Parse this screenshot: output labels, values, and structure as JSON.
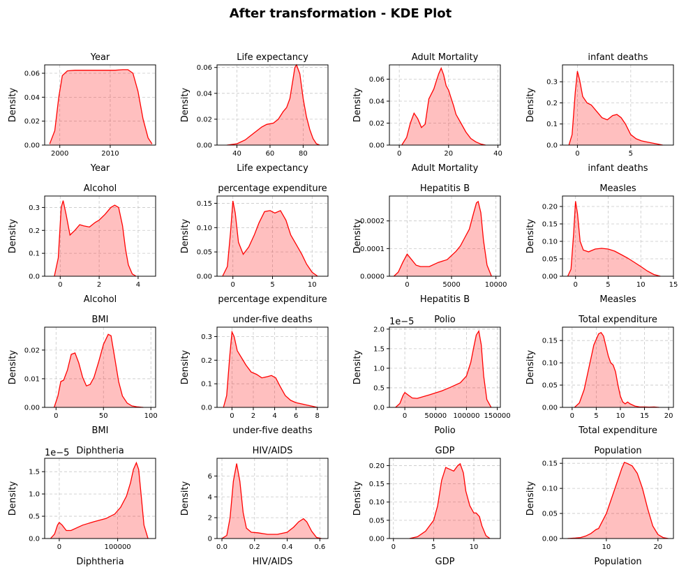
{
  "figure": {
    "title": "After transformation - KDE Plot"
  },
  "colors": {
    "line": "#ff0000",
    "fill": "#ff0000"
  },
  "chart_data": [
    {
      "type": "area",
      "title": "Year",
      "xlabel": "Year",
      "ylabel": "Density",
      "xlim": [
        1997,
        2019
      ],
      "ylim": [
        0,
        0.067
      ],
      "xticks": [
        2000,
        2010
      ],
      "yticks": [
        0,
        0.02,
        0.04,
        0.06
      ],
      "ytick_labels": [
        "0.00",
        "0.02",
        "0.04",
        "0.06"
      ],
      "offset": "",
      "grid": true,
      "x": [
        1998,
        1999,
        1999.8,
        2000.5,
        2001.5,
        2003,
        2006,
        2009,
        2011,
        2012.5,
        2013.5,
        2014.5,
        2015.5,
        2016.5,
        2017.5,
        2018.3
      ],
      "y": [
        0.001,
        0.012,
        0.04,
        0.058,
        0.062,
        0.0625,
        0.0625,
        0.0625,
        0.0625,
        0.063,
        0.063,
        0.06,
        0.045,
        0.022,
        0.006,
        0.001
      ]
    },
    {
      "type": "area",
      "title": "Life expectancy",
      "xlabel": "Life expectancy",
      "ylabel": "Density",
      "xlim": [
        28,
        95
      ],
      "ylim": [
        0,
        0.062
      ],
      "xticks": [
        40,
        60,
        80
      ],
      "yticks": [
        0,
        0.02,
        0.04,
        0.06
      ],
      "ytick_labels": [
        "0.00",
        "0.02",
        "0.04",
        "0.06"
      ],
      "offset": "",
      "grid": true,
      "x": [
        34,
        40,
        45,
        50,
        55,
        58,
        62,
        65,
        68,
        70,
        72,
        74,
        75,
        76,
        78,
        80,
        82,
        84,
        86,
        88,
        90
      ],
      "y": [
        0,
        0.001,
        0.004,
        0.009,
        0.014,
        0.016,
        0.017,
        0.02,
        0.026,
        0.029,
        0.036,
        0.052,
        0.06,
        0.062,
        0.055,
        0.036,
        0.022,
        0.012,
        0.005,
        0.001,
        0
      ]
    },
    {
      "type": "area",
      "title": "Adult Mortality",
      "xlabel": "Adult Mortality",
      "ylabel": "Density",
      "xlim": [
        -4,
        41
      ],
      "ylim": [
        0,
        0.073
      ],
      "xticks": [
        0,
        20,
        40
      ],
      "yticks": [
        0,
        0.02,
        0.04,
        0.06
      ],
      "ytick_labels": [
        "0.00",
        "0.02",
        "0.04",
        "0.06"
      ],
      "offset": "",
      "grid": true,
      "x": [
        1,
        3,
        4.5,
        6,
        7.5,
        9,
        10.5,
        12,
        14,
        15,
        16,
        17,
        18,
        19,
        20,
        21,
        22,
        23,
        25,
        27,
        29,
        31,
        33,
        35
      ],
      "y": [
        0,
        0.007,
        0.02,
        0.029,
        0.024,
        0.016,
        0.019,
        0.042,
        0.051,
        0.058,
        0.065,
        0.07,
        0.064,
        0.054,
        0.05,
        0.043,
        0.036,
        0.028,
        0.02,
        0.012,
        0.006,
        0.003,
        0.001,
        0
      ]
    },
    {
      "type": "area",
      "title": "infant deaths",
      "xlabel": "infant deaths",
      "ylabel": "Density",
      "xlim": [
        -1.4,
        9
      ],
      "ylim": [
        0,
        0.38
      ],
      "xticks": [
        0,
        5
      ],
      "yticks": [
        0,
        0.1,
        0.2,
        0.3
      ],
      "ytick_labels": [
        "0.0",
        "0.1",
        "0.2",
        "0.3"
      ],
      "offset": "",
      "grid": true,
      "x": [
        -0.8,
        -0.5,
        -0.2,
        0,
        0.2,
        0.5,
        0.9,
        1.3,
        1.8,
        2.3,
        2.8,
        3.3,
        3.7,
        4.1,
        4.5,
        5,
        5.5,
        6,
        6.5,
        7,
        7.5,
        8
      ],
      "y": [
        0,
        0.05,
        0.25,
        0.35,
        0.31,
        0.23,
        0.2,
        0.19,
        0.16,
        0.13,
        0.12,
        0.14,
        0.145,
        0.13,
        0.1,
        0.05,
        0.03,
        0.02,
        0.015,
        0.01,
        0.005,
        0
      ]
    },
    {
      "type": "area",
      "title": "Alcohol",
      "xlabel": "Alcohol",
      "ylabel": "Density",
      "xlim": [
        -0.8,
        4.9
      ],
      "ylim": [
        0,
        0.35
      ],
      "xticks": [
        0,
        2,
        4
      ],
      "yticks": [
        0,
        0.1,
        0.2,
        0.3
      ],
      "ytick_labels": [
        "0.0",
        "0.1",
        "0.2",
        "0.3"
      ],
      "offset": "",
      "grid": true,
      "x": [
        -0.3,
        -0.1,
        0.05,
        0.15,
        0.3,
        0.5,
        0.75,
        1.0,
        1.2,
        1.5,
        1.8,
        2.0,
        2.3,
        2.6,
        2.8,
        3.0,
        3.2,
        3.35,
        3.5,
        3.7,
        3.9
      ],
      "y": [
        0,
        0.08,
        0.3,
        0.33,
        0.27,
        0.18,
        0.2,
        0.225,
        0.22,
        0.215,
        0.235,
        0.245,
        0.27,
        0.3,
        0.31,
        0.3,
        0.22,
        0.12,
        0.05,
        0.01,
        0
      ]
    },
    {
      "type": "area",
      "title": "percentage expenditure",
      "xlabel": "percentage expenditure",
      "ylabel": "Density",
      "xlim": [
        -2,
        12
      ],
      "ylim": [
        0,
        0.165
      ],
      "xticks": [
        0,
        5,
        10
      ],
      "yticks": [
        0,
        0.05,
        0.1,
        0.15
      ],
      "ytick_labels": [
        "0.00",
        "0.05",
        "0.10",
        "0.15"
      ],
      "offset": "",
      "grid": true,
      "x": [
        -1.3,
        -0.7,
        -0.3,
        0,
        0.3,
        0.7,
        1.3,
        2,
        2.7,
        3.3,
        4,
        4.7,
        5.3,
        6,
        6.7,
        7.3,
        8,
        8.7,
        9.3,
        10,
        10.7
      ],
      "y": [
        0,
        0.02,
        0.09,
        0.155,
        0.13,
        0.07,
        0.045,
        0.06,
        0.085,
        0.11,
        0.133,
        0.135,
        0.13,
        0.135,
        0.115,
        0.085,
        0.065,
        0.045,
        0.025,
        0.008,
        0
      ]
    },
    {
      "type": "area",
      "title": "Hepatitis B",
      "xlabel": "Hepatitis B",
      "ylabel": "Density",
      "xlim": [
        -2000,
        10500
      ],
      "ylim": [
        0,
        0.00029
      ],
      "xticks": [
        0,
        5000,
        10000
      ],
      "yticks": [
        0,
        0.0001,
        0.0002
      ],
      "ytick_labels": [
        "0.0000",
        "0.0001",
        "0.0002"
      ],
      "offset": "",
      "grid": true,
      "x": [
        -1500,
        -1000,
        -500,
        0,
        500,
        1000,
        1500,
        2500,
        3500,
        4500,
        5500,
        6000,
        6500,
        7000,
        7500,
        7800,
        8000,
        8300,
        8600,
        9000,
        9500
      ],
      "y": [
        0,
        1.5e-05,
        5e-05,
        8e-05,
        6e-05,
        4e-05,
        3.5e-05,
        3.5e-05,
        5e-05,
        6e-05,
        9e-05,
        0.00011,
        0.00014,
        0.00017,
        0.00023,
        0.000265,
        0.00027,
        0.00023,
        0.00013,
        4e-05,
        0
      ]
    },
    {
      "type": "area",
      "title": "Measles",
      "xlabel": "Measles",
      "ylabel": "Density",
      "xlim": [
        -2,
        15
      ],
      "ylim": [
        0,
        0.23
      ],
      "xticks": [
        0,
        5,
        10,
        15
      ],
      "yticks": [
        0,
        0.05,
        0.1,
        0.15,
        0.2
      ],
      "ytick_labels": [
        "0.00",
        "0.05",
        "0.10",
        "0.15",
        "0.20"
      ],
      "offset": "",
      "grid": true,
      "x": [
        -1.2,
        -0.7,
        -0.3,
        0,
        0.3,
        0.7,
        1.2,
        2,
        3,
        4,
        5,
        6,
        7,
        8,
        9,
        10,
        11,
        12,
        13
      ],
      "y": [
        0,
        0.02,
        0.12,
        0.215,
        0.18,
        0.1,
        0.075,
        0.07,
        0.078,
        0.08,
        0.078,
        0.072,
        0.062,
        0.052,
        0.04,
        0.028,
        0.015,
        0.005,
        0
      ]
    },
    {
      "type": "area",
      "title": "BMI",
      "xlabel": "BMI",
      "ylabel": "Density",
      "xlim": [
        -12,
        105
      ],
      "ylim": [
        0,
        0.028
      ],
      "xticks": [
        0,
        50,
        100
      ],
      "yticks": [
        0,
        0.01,
        0.02
      ],
      "ytick_labels": [
        "0.00",
        "0.01",
        "0.02"
      ],
      "offset": "",
      "grid": true,
      "x": [
        -2,
        2,
        5,
        8,
        12,
        16,
        20,
        24,
        28,
        32,
        36,
        40,
        45,
        50,
        55,
        58,
        62,
        66,
        70,
        75,
        80,
        85,
        92
      ],
      "y": [
        0,
        0.004,
        0.009,
        0.0095,
        0.013,
        0.0185,
        0.019,
        0.0155,
        0.0105,
        0.0075,
        0.008,
        0.0105,
        0.016,
        0.022,
        0.0255,
        0.025,
        0.017,
        0.009,
        0.004,
        0.0015,
        0.0005,
        0.0002,
        0
      ]
    },
    {
      "type": "area",
      "title": "under-five deaths",
      "xlabel": "under-five deaths",
      "ylabel": "Density",
      "xlim": [
        -1.4,
        9
      ],
      "ylim": [
        0,
        0.34
      ],
      "xticks": [
        0,
        2,
        4,
        6,
        8
      ],
      "yticks": [
        0,
        0.1,
        0.2,
        0.3
      ],
      "ytick_labels": [
        "0.0",
        "0.1",
        "0.2",
        "0.3"
      ],
      "offset": "",
      "grid": true,
      "x": [
        -0.8,
        -0.5,
        -0.2,
        0,
        0.2,
        0.5,
        0.9,
        1.3,
        1.8,
        2.3,
        2.8,
        3.3,
        3.7,
        4.1,
        4.5,
        5,
        5.5,
        6,
        6.5,
        7,
        7.5,
        8
      ],
      "y": [
        0,
        0.05,
        0.22,
        0.32,
        0.3,
        0.24,
        0.21,
        0.18,
        0.15,
        0.14,
        0.125,
        0.13,
        0.135,
        0.125,
        0.09,
        0.05,
        0.03,
        0.02,
        0.015,
        0.01,
        0.005,
        0
      ]
    },
    {
      "type": "area",
      "title": "Polio",
      "xlabel": "Polio",
      "ylabel": "Density",
      "xlim": [
        -25000,
        155000
      ],
      "ylim": [
        0,
        2.05e-05
      ],
      "xticks": [
        0,
        50000,
        100000,
        150000
      ],
      "yticks": [
        0,
        5e-06,
        1e-05,
        1.5e-05,
        2e-05
      ],
      "ytick_labels": [
        "0.0",
        "0.5",
        "1.0",
        "1.5",
        "2.0"
      ],
      "offset": "1e−5",
      "grid": true,
      "x": [
        -15000,
        -8000,
        -3000,
        0,
        5000,
        12000,
        20000,
        40000,
        60000,
        75000,
        90000,
        100000,
        107000,
        112000,
        116000,
        120000,
        124000,
        128000,
        133000,
        140000
      ],
      "y": [
        0,
        1e-06,
        3e-06,
        3.8e-06,
        3.2e-06,
        2.4e-06,
        2.3e-06,
        3.2e-06,
        4.2e-06,
        5.2e-06,
        6.3e-06,
        8e-06,
        1.15e-05,
        1.55e-05,
        1.85e-05,
        1.95e-05,
        1.6e-05,
        8e-06,
        2e-06,
        0
      ]
    },
    {
      "type": "area",
      "title": "Total expenditure",
      "xlabel": "Total expenditure",
      "ylabel": "Density",
      "xlim": [
        -2,
        21
      ],
      "ylim": [
        0,
        0.18
      ],
      "xticks": [
        0,
        5,
        10,
        15,
        20
      ],
      "yticks": [
        0,
        0.05,
        0.1,
        0.15
      ],
      "ytick_labels": [
        "0.00",
        "0.05",
        "0.10",
        "0.15"
      ],
      "offset": "",
      "grid": true,
      "x": [
        0.5,
        1.5,
        2.5,
        3.5,
        4.5,
        5.5,
        6,
        6.5,
        7.5,
        8,
        8.5,
        9,
        9.5,
        10,
        10.5,
        11,
        11.5,
        12,
        13,
        14,
        15,
        16,
        17,
        18
      ],
      "y": [
        0,
        0.01,
        0.04,
        0.09,
        0.14,
        0.165,
        0.168,
        0.16,
        0.115,
        0.1,
        0.095,
        0.08,
        0.05,
        0.025,
        0.012,
        0.008,
        0.012,
        0.008,
        0.003,
        0.001,
        0.001,
        0.0005,
        0.001,
        0
      ]
    },
    {
      "type": "area",
      "title": "Diphtheria",
      "xlabel": "Diphtheria",
      "ylabel": "Density",
      "xlim": [
        -25000,
        165000
      ],
      "ylim": [
        0,
        1.8e-05
      ],
      "xticks": [
        0,
        100000
      ],
      "yticks": [
        0,
        5e-06,
        1e-05,
        1.5e-05
      ],
      "ytick_labels": [
        "0.0",
        "0.5",
        "1.0",
        "1.5"
      ],
      "offset": "1e−5",
      "grid": true,
      "x": [
        -15000,
        -8000,
        -3000,
        0,
        5000,
        12000,
        20000,
        40000,
        60000,
        80000,
        95000,
        105000,
        115000,
        122000,
        127000,
        132000,
        136000,
        140000,
        145000,
        152000
      ],
      "y": [
        0,
        1e-06,
        3e-06,
        3.6e-06,
        3e-06,
        1.8e-06,
        1.8e-06,
        3e-06,
        3.8e-06,
        4.5e-06,
        5.5e-06,
        7e-06,
        9.5e-06,
        1.25e-05,
        1.55e-05,
        1.7e-05,
        1.55e-05,
        1e-05,
        3e-06,
        0
      ]
    },
    {
      "type": "area",
      "title": "HIV/AIDS",
      "xlabel": "HIV/AIDS",
      "ylabel": "Density",
      "xlim": [
        -0.03,
        0.65
      ],
      "ylim": [
        0,
        7.7
      ],
      "xticks": [
        0,
        0.2,
        0.4,
        0.6
      ],
      "xtick_labels": [
        "0.0",
        "0.2",
        "0.4",
        "0.6"
      ],
      "yticks": [
        0,
        2,
        4,
        6
      ],
      "ytick_labels": [
        "0",
        "2",
        "4",
        "6"
      ],
      "offset": "",
      "grid": true,
      "x": [
        0,
        0.03,
        0.05,
        0.07,
        0.09,
        0.11,
        0.13,
        0.15,
        0.18,
        0.22,
        0.28,
        0.34,
        0.4,
        0.44,
        0.47,
        0.5,
        0.52,
        0.55,
        0.58,
        0.61
      ],
      "y": [
        0,
        0.3,
        2,
        5.5,
        7.2,
        5.5,
        2.5,
        1.0,
        0.6,
        0.55,
        0.4,
        0.4,
        0.6,
        1.1,
        1.6,
        1.9,
        1.6,
        0.7,
        0.1,
        0
      ]
    },
    {
      "type": "area",
      "title": "GDP",
      "xlabel": "GDP",
      "ylabel": "Density",
      "xlim": [
        -0.5,
        13.3
      ],
      "ylim": [
        0,
        0.22
      ],
      "xticks": [
        0,
        5,
        10
      ],
      "yticks": [
        0,
        0.05,
        0.1,
        0.15,
        0.2
      ],
      "ytick_labels": [
        "0.00",
        "0.05",
        "0.10",
        "0.15",
        "0.20"
      ],
      "offset": "",
      "grid": true,
      "x": [
        2,
        3,
        4,
        5,
        5.5,
        6,
        6.5,
        7,
        7.5,
        8,
        8.3,
        8.7,
        9,
        9.5,
        10,
        10.3,
        10.7,
        11,
        11.5,
        12
      ],
      "y": [
        0,
        0.005,
        0.02,
        0.05,
        0.09,
        0.16,
        0.195,
        0.19,
        0.185,
        0.2,
        0.205,
        0.18,
        0.13,
        0.09,
        0.07,
        0.07,
        0.06,
        0.035,
        0.008,
        0
      ]
    },
    {
      "type": "area",
      "title": "Population",
      "xlabel": "Population",
      "ylabel": "Density",
      "xlim": [
        1.5,
        23
      ],
      "ylim": [
        0,
        0.16
      ],
      "xticks": [
        10,
        20
      ],
      "yticks": [
        0,
        0.05,
        0.1,
        0.15
      ],
      "ytick_labels": [
        "0.00",
        "0.05",
        "0.10",
        "0.15"
      ],
      "offset": "",
      "grid": true,
      "x": [
        2.5,
        4,
        5,
        6,
        7,
        8,
        8.5,
        9,
        10,
        11,
        12,
        13,
        13.5,
        14,
        15,
        16,
        17,
        18,
        19,
        20,
        21,
        22
      ],
      "y": [
        0,
        0.001,
        0.002,
        0.005,
        0.01,
        0.018,
        0.02,
        0.03,
        0.05,
        0.08,
        0.11,
        0.14,
        0.152,
        0.15,
        0.145,
        0.13,
        0.1,
        0.06,
        0.025,
        0.008,
        0.002,
        0
      ]
    }
  ]
}
